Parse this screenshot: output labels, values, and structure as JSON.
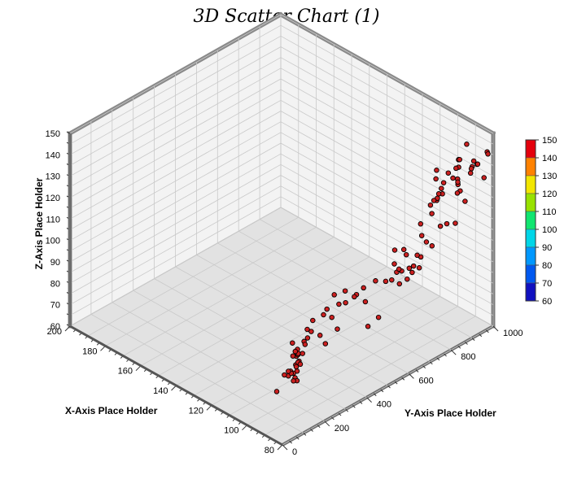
{
  "chart_data": {
    "type": "scatter",
    "title": "3D Scatter Chart (1)",
    "xlabel": "X-Axis Place Holder",
    "ylabel": "Y-Axis Place Holder",
    "zlabel": "Z-Axis Place Holder",
    "xlim": [
      80,
      200
    ],
    "ylim": [
      0,
      1000
    ],
    "zlim": [
      60,
      150
    ],
    "x_ticks": [
      "80",
      "100",
      "120",
      "140",
      "160",
      "180",
      "200"
    ],
    "y_ticks": [
      "0",
      "200",
      "400",
      "600",
      "800",
      "1000"
    ],
    "z_ticks": [
      "60",
      "70",
      "80",
      "90",
      "100",
      "110",
      "120",
      "130",
      "140",
      "150"
    ],
    "colorbar_ticks": [
      "150",
      "140",
      "130",
      "120",
      "110",
      "100",
      "90",
      "80",
      "70",
      "60"
    ],
    "colorbar_colors": [
      "#e4000c",
      "#ff8200",
      "#f2e600",
      "#98e200",
      "#10e670",
      "#00d6e8",
      "#0098ff",
      "#0058f0",
      "#1010c0"
    ],
    "grid": true,
    "colorbar_position": "right",
    "point_color": "#cc2020",
    "points": [
      [
        80,
        60,
        88
      ],
      [
        82,
        80,
        92
      ],
      [
        84,
        100,
        94
      ],
      [
        85,
        70,
        86
      ],
      [
        86,
        120,
        85
      ],
      [
        88,
        40,
        79
      ],
      [
        90,
        160,
        85
      ],
      [
        92,
        110,
        81
      ],
      [
        92,
        170,
        75
      ],
      [
        94,
        170,
        74
      ],
      [
        96,
        200,
        78
      ],
      [
        98,
        230,
        78
      ],
      [
        100,
        220,
        72
      ],
      [
        101,
        250,
        75
      ],
      [
        102,
        280,
        77
      ],
      [
        103,
        330,
        84
      ],
      [
        104,
        240,
        70
      ],
      [
        106,
        260,
        67
      ],
      [
        107,
        300,
        73
      ],
      [
        108,
        320,
        67
      ],
      [
        110,
        280,
        65
      ],
      [
        111,
        310,
        70
      ],
      [
        112,
        340,
        71
      ],
      [
        113,
        380,
        72
      ],
      [
        114,
        360,
        67
      ],
      [
        116,
        420,
        74
      ],
      [
        117,
        430,
        69
      ],
      [
        118,
        380,
        65
      ],
      [
        120,
        480,
        73
      ],
      [
        122,
        460,
        62
      ],
      [
        122,
        400,
        66
      ],
      [
        95,
        330,
        82
      ],
      [
        99,
        420,
        82
      ],
      [
        104,
        380,
        79
      ],
      [
        108,
        430,
        84
      ],
      [
        112,
        480,
        82
      ],
      [
        115,
        540,
        84
      ],
      [
        111,
        560,
        81
      ],
      [
        110,
        520,
        83
      ],
      [
        116,
        600,
        82
      ],
      [
        112,
        620,
        81
      ],
      [
        118,
        660,
        75
      ],
      [
        108,
        620,
        86
      ],
      [
        106,
        660,
        88
      ],
      [
        105,
        700,
        86
      ],
      [
        104,
        720,
        86
      ],
      [
        102,
        740,
        84
      ],
      [
        100,
        760,
        86
      ],
      [
        100,
        710,
        92
      ],
      [
        96,
        700,
        95
      ],
      [
        94,
        740,
        96
      ],
      [
        98,
        800,
        90
      ],
      [
        102,
        800,
        86
      ],
      [
        106,
        820,
        85
      ],
      [
        103,
        850,
        90
      ],
      [
        92,
        740,
        102
      ],
      [
        91,
        680,
        106
      ],
      [
        93,
        640,
        103
      ],
      [
        88,
        620,
        104
      ],
      [
        90,
        660,
        110
      ],
      [
        88,
        600,
        114
      ],
      [
        107,
        620,
        80
      ],
      [
        96,
        540,
        78
      ],
      [
        114,
        520,
        75
      ],
      [
        90,
        540,
        85
      ],
      [
        82,
        700,
        115
      ],
      [
        80,
        820,
        118
      ],
      [
        80,
        780,
        120
      ],
      [
        82,
        860,
        130
      ],
      [
        86,
        880,
        126
      ],
      [
        80,
        900,
        140
      ],
      [
        82,
        940,
        138
      ],
      [
        84,
        960,
        136
      ],
      [
        88,
        900,
        128
      ],
      [
        88,
        960,
        130
      ],
      [
        84,
        990,
        128
      ],
      [
        90,
        980,
        130
      ],
      [
        93,
        940,
        126
      ],
      [
        91,
        1000,
        132
      ],
      [
        95,
        1000,
        138
      ],
      [
        96,
        970,
        132
      ],
      [
        92,
        860,
        124
      ],
      [
        94,
        820,
        120
      ],
      [
        90,
        920,
        134
      ],
      [
        95,
        880,
        124
      ],
      [
        81,
        980,
        142
      ],
      [
        83,
        1000,
        139
      ],
      [
        86,
        800,
        115
      ],
      [
        98,
        960,
        123
      ],
      [
        99,
        1000,
        129
      ],
      [
        98,
        860,
        112
      ],
      [
        100,
        900,
        115
      ],
      [
        102,
        920,
        114
      ],
      [
        103,
        980,
        122
      ],
      [
        101,
        1000,
        124
      ],
      [
        104,
        920,
        112
      ],
      [
        106,
        960,
        112
      ],
      [
        108,
        1000,
        114
      ],
      [
        100,
        1000,
        118
      ],
      [
        110,
        980,
        116
      ],
      [
        112,
        1000,
        118
      ],
      [
        84,
        900,
        122
      ],
      [
        93,
        770,
        109
      ],
      [
        96,
        790,
        112
      ],
      [
        86,
        760,
        108
      ]
    ]
  }
}
